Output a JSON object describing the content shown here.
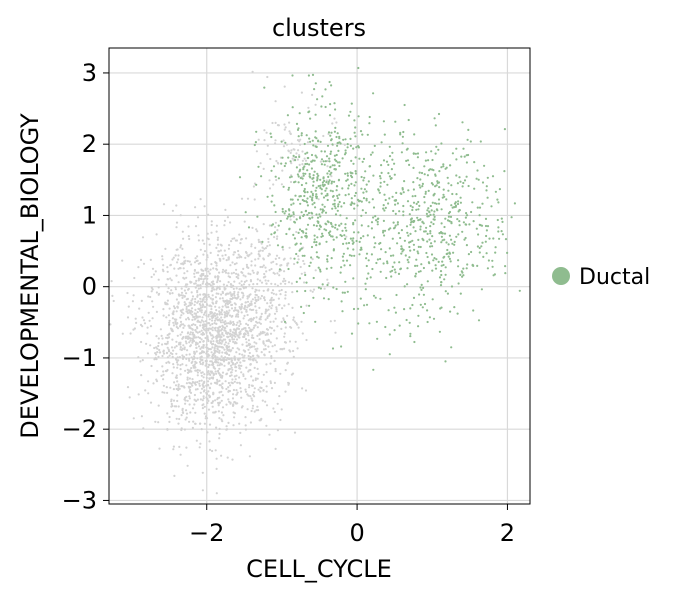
{
  "chart_data": {
    "type": "scatter",
    "title": "clusters",
    "xlabel": "CELL_CYCLE",
    "ylabel": "DEVELOPMENTAL_BIOLOGY",
    "xlim": [
      -3.3,
      2.3
    ],
    "ylim": [
      -3.05,
      3.35
    ],
    "xticks": [
      -2,
      0,
      2
    ],
    "xtick_labels": [
      "−2",
      "0",
      "2"
    ],
    "yticks": [
      -3,
      -2,
      -1,
      0,
      1,
      2,
      3
    ],
    "ytick_labels": [
      "−3",
      "−2",
      "−1",
      "0",
      "1",
      "2",
      "3"
    ],
    "grid": true,
    "legend_position": "right",
    "series": [
      {
        "color": "#d3d3d3",
        "clusters": [
          {
            "cx": -1.9,
            "cy": -0.7,
            "sx": 0.45,
            "sy": 0.65,
            "n": 1900
          },
          {
            "cx": -1.3,
            "cy": 0.1,
            "sx": 0.35,
            "sy": 0.5,
            "n": 200
          },
          {
            "cx": -0.8,
            "cy": 1.9,
            "sx": 0.25,
            "sy": 0.35,
            "n": 90
          }
        ]
      },
      {
        "name": "Ductal",
        "color": "#8fbc8f",
        "clusters": [
          {
            "cx": -0.5,
            "cy": 1.3,
            "sx": 0.35,
            "sy": 0.65,
            "n": 520
          },
          {
            "cx": 1.1,
            "cy": 0.9,
            "sx": 0.45,
            "sy": 0.55,
            "n": 420
          },
          {
            "cx": 0.3,
            "cy": 1.1,
            "sx": 0.55,
            "sy": 0.6,
            "n": 180
          },
          {
            "cx": 0.5,
            "cy": -0.3,
            "sx": 0.5,
            "sy": 0.4,
            "n": 60
          }
        ]
      }
    ]
  },
  "legend": {
    "label": "Ductal",
    "color": "#8fbc8f"
  }
}
